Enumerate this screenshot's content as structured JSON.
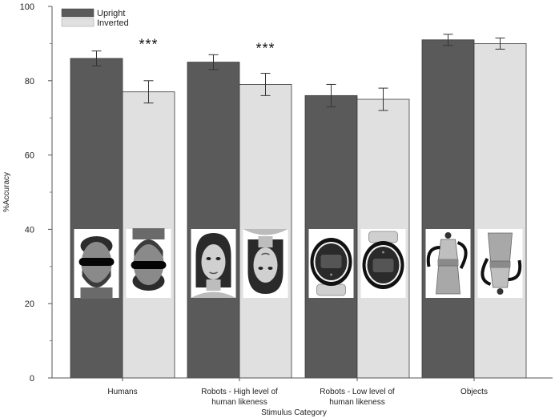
{
  "chart_data": {
    "type": "bar",
    "xlabel": "Stimulus Category",
    "ylabel": "%Accuracy",
    "ylim": [
      0,
      100
    ],
    "yticks": [
      0,
      20,
      40,
      60,
      80,
      100
    ],
    "categories": [
      [
        "Humans"
      ],
      [
        "Robots - High level of",
        "human likeness"
      ],
      [
        "Robots - Low level of",
        "human likeness"
      ],
      [
        "Objects"
      ]
    ],
    "series": [
      {
        "name": "Upright",
        "color": "#5a5a5a",
        "values": [
          86,
          85,
          76,
          91
        ],
        "errors": [
          2,
          2,
          3,
          1.5
        ]
      },
      {
        "name": "Inverted",
        "color": "#e0e0e0",
        "values": [
          77,
          79,
          75,
          90
        ],
        "errors": [
          3,
          3,
          3,
          1.5
        ]
      }
    ],
    "annotations": [
      {
        "category_index": 0,
        "text": "***"
      },
      {
        "category_index": 1,
        "text": "***"
      }
    ],
    "legend_position": "top-left",
    "stimulus_images": [
      {
        "category_index": 0,
        "upright": "face-with-eye-bar",
        "inverted": "face-with-eye-bar-inverted"
      },
      {
        "category_index": 1,
        "upright": "android-face",
        "inverted": "android-face-inverted"
      },
      {
        "category_index": 2,
        "upright": "round-screen-robot",
        "inverted": "round-screen-robot-inverted"
      },
      {
        "category_index": 3,
        "upright": "coffee-pot",
        "inverted": "coffee-pot-inverted"
      }
    ]
  }
}
